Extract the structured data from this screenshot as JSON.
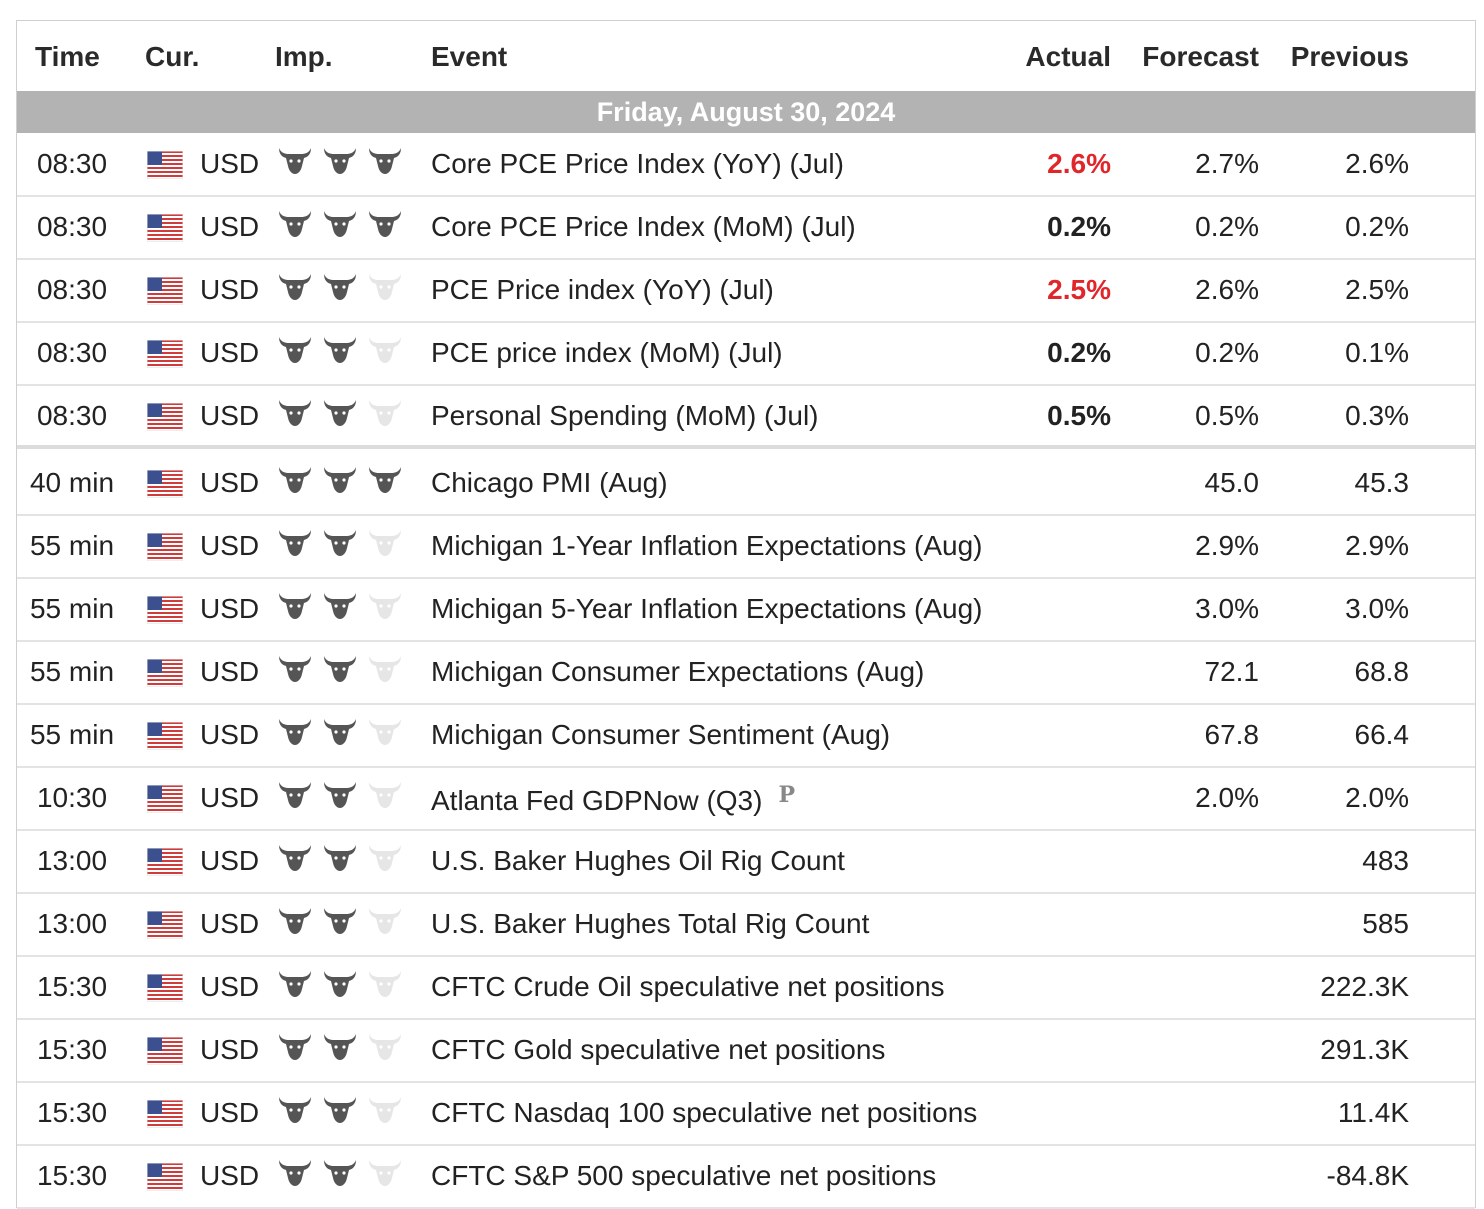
{
  "columns": {
    "time": "Time",
    "currency": "Cur.",
    "importance": "Imp.",
    "event": "Event",
    "actual": "Actual",
    "forecast": "Forecast",
    "previous": "Previous"
  },
  "day_label": "Friday, August 30, 2024",
  "colors": {
    "actual_red": "#e0262b",
    "day_bar": "#b3b3b3",
    "bull_active": "#555555",
    "bull_inactive": "#e6e6e6"
  },
  "rows": [
    {
      "time": "08:30",
      "currency": "USD",
      "importance": 3,
      "event": "Core PCE Price Index (YoY) (Jul)",
      "actual": "2.6%",
      "actual_color": "red",
      "forecast": "2.7%",
      "previous": "2.6%"
    },
    {
      "time": "08:30",
      "currency": "USD",
      "importance": 3,
      "event": "Core PCE Price Index (MoM) (Jul)",
      "actual": "0.2%",
      "actual_color": "black",
      "forecast": "0.2%",
      "previous": "0.2%"
    },
    {
      "time": "08:30",
      "currency": "USD",
      "importance": 2,
      "event": "PCE Price index (YoY) (Jul)",
      "actual": "2.5%",
      "actual_color": "red",
      "forecast": "2.6%",
      "previous": "2.5%"
    },
    {
      "time": "08:30",
      "currency": "USD",
      "importance": 2,
      "event": "PCE price index (MoM) (Jul)",
      "actual": "0.2%",
      "actual_color": "black",
      "forecast": "0.2%",
      "previous": "0.1%"
    },
    {
      "time": "08:30",
      "currency": "USD",
      "importance": 2,
      "event": "Personal Spending (MoM) (Jul)",
      "actual": "0.5%",
      "actual_color": "black",
      "forecast": "0.5%",
      "previous": "0.3%"
    },
    {
      "time": "40 min",
      "currency": "USD",
      "importance": 3,
      "event": "Chicago PMI (Aug)",
      "actual": "",
      "forecast": "45.0",
      "previous": "45.3"
    },
    {
      "time": "55 min",
      "currency": "USD",
      "importance": 2,
      "event": "Michigan 1-Year Inflation Expectations (Aug)",
      "actual": "",
      "forecast": "2.9%",
      "previous": "2.9%"
    },
    {
      "time": "55 min",
      "currency": "USD",
      "importance": 2,
      "event": "Michigan 5-Year Inflation Expectations (Aug)",
      "actual": "",
      "forecast": "3.0%",
      "previous": "3.0%"
    },
    {
      "time": "55 min",
      "currency": "USD",
      "importance": 2,
      "event": "Michigan Consumer Expectations (Aug)",
      "actual": "",
      "forecast": "72.1",
      "previous": "68.8"
    },
    {
      "time": "55 min",
      "currency": "USD",
      "importance": 2,
      "event": "Michigan Consumer Sentiment (Aug)",
      "actual": "",
      "forecast": "67.8",
      "previous": "66.4"
    },
    {
      "time": "10:30",
      "currency": "USD",
      "importance": 2,
      "event": "Atlanta Fed GDPNow (Q3)",
      "badge": "P",
      "actual": "",
      "forecast": "2.0%",
      "previous": "2.0%"
    },
    {
      "time": "13:00",
      "currency": "USD",
      "importance": 2,
      "event": "U.S. Baker Hughes Oil Rig Count",
      "actual": "",
      "forecast": "",
      "previous": "483"
    },
    {
      "time": "13:00",
      "currency": "USD",
      "importance": 2,
      "event": "U.S. Baker Hughes Total Rig Count",
      "actual": "",
      "forecast": "",
      "previous": "585"
    },
    {
      "time": "15:30",
      "currency": "USD",
      "importance": 2,
      "event": "CFTC Crude Oil speculative net positions",
      "actual": "",
      "forecast": "",
      "previous": "222.3K"
    },
    {
      "time": "15:30",
      "currency": "USD",
      "importance": 2,
      "event": "CFTC Gold speculative net positions",
      "actual": "",
      "forecast": "",
      "previous": "291.3K"
    },
    {
      "time": "15:30",
      "currency": "USD",
      "importance": 2,
      "event": "CFTC Nasdaq 100 speculative net positions",
      "actual": "",
      "forecast": "",
      "previous": "11.4K"
    },
    {
      "time": "15:30",
      "currency": "USD",
      "importance": 2,
      "event": "CFTC S&P 500 speculative net positions",
      "actual": "",
      "forecast": "",
      "previous": "-84.8K"
    }
  ]
}
